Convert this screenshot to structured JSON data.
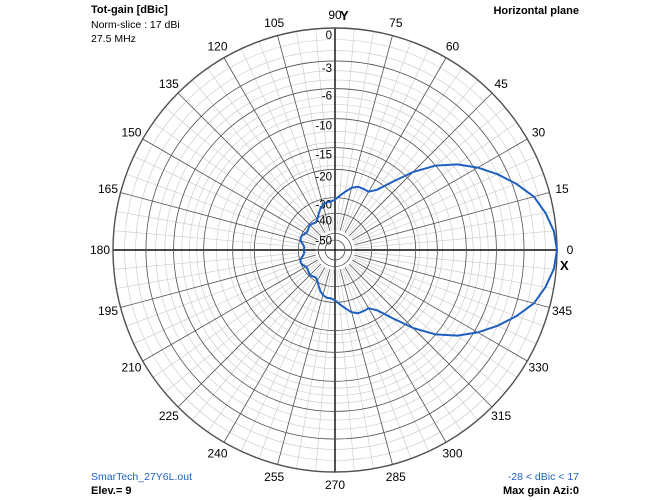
{
  "header": {
    "title": "Tot-gain [dBic]",
    "norm_slice": "Norm-slice : 17 dBi",
    "frequency": "27.5 MHz",
    "plane": "Horizontal plane"
  },
  "footer": {
    "file": "SmarTech_27Y6L.out",
    "elevation": "Elev.= 9",
    "range": "-28 < dBic < 17",
    "max_gain": "Max gain Azi:0"
  },
  "colors": {
    "trace": "#1f5fbf",
    "grid_light": "#c8c8c8",
    "grid_dark": "#505050"
  },
  "chart_data": {
    "type": "polar",
    "title": "Tot-gain [dBic]",
    "axis_y_label": "Y",
    "axis_x_label": "X",
    "angle_labels": [
      "0",
      "15",
      "30",
      "45",
      "60",
      "75",
      "90",
      "105",
      "120",
      "135",
      "150",
      "165",
      "180",
      "195",
      "210",
      "225",
      "240",
      "255",
      "270",
      "285",
      "300",
      "315",
      "330",
      "345"
    ],
    "radial_labels": [
      "0",
      "-3",
      "-6",
      "-10",
      "-15",
      "-20",
      "-30",
      "-40",
      "-50"
    ],
    "grid": true,
    "series": [
      {
        "azimuth_deg": [
          0,
          5,
          10,
          15,
          20,
          25,
          30,
          35,
          40,
          45,
          50,
          55,
          60,
          65,
          70,
          75,
          80,
          85,
          90,
          95,
          100,
          105,
          110,
          115,
          120,
          125,
          130,
          135,
          140,
          145,
          150,
          155,
          160,
          165,
          170,
          175,
          180,
          185,
          190,
          195,
          200,
          205,
          210,
          215,
          220,
          225,
          230,
          235,
          240,
          245,
          250,
          255,
          260,
          265,
          270,
          275,
          280,
          285,
          290,
          295,
          300,
          305,
          310,
          315,
          320,
          325,
          330,
          335,
          340,
          345,
          350,
          355
        ],
        "gain_db_rel": [
          0,
          -0.2,
          -0.7,
          -1.4,
          -2.6,
          -4.0,
          -5.6,
          -7.5,
          -10.0,
          -13.5,
          -18.0,
          -22.0,
          -24.0,
          -24.0,
          -24.0,
          -25.0,
          -27.0,
          -29.0,
          -31.0,
          -32.0,
          -32.0,
          -33.0,
          -35.0,
          -38.0,
          -41.0,
          -43.0,
          -42.0,
          -41.0,
          -42.0,
          -43.0,
          -43.0,
          -41.0,
          -40.0,
          -41.0,
          -44.0,
          -46.0,
          -45.0,
          -46.0,
          -44.0,
          -41.0,
          -40.0,
          -41.0,
          -43.0,
          -43.0,
          -42.0,
          -41.0,
          -42.0,
          -43.0,
          -41.0,
          -38.0,
          -35.0,
          -33.0,
          -32.0,
          -32.0,
          -31.0,
          -29.0,
          -27.0,
          -25.0,
          -24.0,
          -24.0,
          -24.0,
          -22.0,
          -18.0,
          -13.5,
          -10.0,
          -7.5,
          -5.6,
          -4.0,
          -2.6,
          -1.4,
          -0.7,
          -0.2
        ]
      }
    ]
  }
}
